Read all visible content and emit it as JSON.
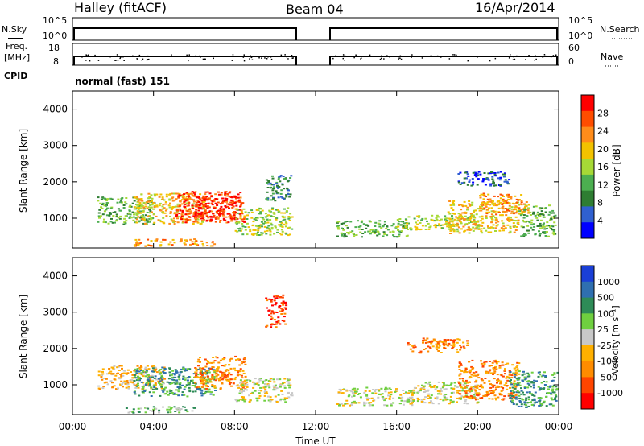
{
  "header": {
    "station": "Halley (fitACF)",
    "beam": "Beam 04",
    "date": "16/Apr/2014"
  },
  "top_panels": {
    "nsky": {
      "label": "N.Sky",
      "ticks": [
        "10^5",
        "10^0"
      ],
      "right_label": "N.Search",
      "right_ticks": [
        "10^5",
        "10^0"
      ]
    },
    "freq": {
      "label_line1": "Freq.",
      "label_line2": "[MHz]",
      "ticks": [
        "18",
        "8"
      ],
      "right_label": "Nave",
      "right_ticks": [
        "60",
        "0"
      ]
    },
    "cpid": {
      "label": "CPID",
      "value": "normal (fast) 151"
    }
  },
  "colors": {
    "power_scale": [
      "#0000ff",
      "#3060d0",
      "#2e7d32",
      "#4caf50",
      "#a6d936",
      "#f2c200",
      "#ff8c1a",
      "#ff4d00",
      "#ff0000"
    ],
    "velocity_scale": [
      "#ff0000",
      "#ff4500",
      "#ff8c00",
      "#ffb000",
      "#c8c8c8",
      "#6fcf3f",
      "#2e8b57",
      "#2f6fb0",
      "#1a3fd6"
    ]
  },
  "chart_data": [
    {
      "type": "heatmap",
      "panel": "power",
      "ylabel": "Slant Range [km]",
      "ylim": [
        180,
        4500
      ],
      "yticks": [
        "4000",
        "3000",
        "2000",
        "1000"
      ],
      "xlim": [
        "00:00",
        "24:00"
      ],
      "colorbar_label": "Power [dB]",
      "colorbar_ticks": [
        "28",
        "24",
        "20",
        "16",
        "12",
        "8",
        "4"
      ],
      "data_gap": [
        "11:00",
        "12:45"
      ],
      "regions": [
        {
          "t0": 1.2,
          "t1": 4.0,
          "r0": 850,
          "r1": 1600,
          "level": 3
        },
        {
          "t0": 3.0,
          "t1": 6.5,
          "r0": 850,
          "r1": 1700,
          "level": 5
        },
        {
          "t0": 5.0,
          "t1": 8.5,
          "r0": 900,
          "r1": 1750,
          "level": 7
        },
        {
          "t0": 6.0,
          "t1": 8.2,
          "r0": 1000,
          "r1": 1600,
          "level": 8
        },
        {
          "t0": 8.0,
          "t1": 10.8,
          "r0": 550,
          "r1": 1300,
          "level": 4
        },
        {
          "t0": 3.0,
          "t1": 7.0,
          "r0": 250,
          "r1": 450,
          "level": 6
        },
        {
          "t0": 9.5,
          "t1": 10.8,
          "r0": 1500,
          "r1": 2200,
          "level": 2
        },
        {
          "t0": 13.0,
          "t1": 16.5,
          "r0": 500,
          "r1": 950,
          "level": 3
        },
        {
          "t0": 16.0,
          "t1": 20.0,
          "r0": 700,
          "r1": 1100,
          "level": 4
        },
        {
          "t0": 18.5,
          "t1": 22.0,
          "r0": 600,
          "r1": 1500,
          "level": 5
        },
        {
          "t0": 20.0,
          "t1": 22.5,
          "r0": 1100,
          "r1": 1700,
          "level": 6
        },
        {
          "t0": 22.0,
          "t1": 23.8,
          "r0": 500,
          "r1": 1400,
          "level": 3
        },
        {
          "t0": 19.0,
          "t1": 21.5,
          "r0": 1900,
          "r1": 2300,
          "level": 1
        }
      ]
    },
    {
      "type": "heatmap",
      "panel": "velocity",
      "ylabel": "Slant Range [km]",
      "xlabel": "Time UT",
      "ylim": [
        180,
        4500
      ],
      "yticks": [
        "4000",
        "3000",
        "2000",
        "1000"
      ],
      "xticks": [
        "00:00",
        "04:00",
        "08:00",
        "12:00",
        "16:00",
        "20:00",
        "00:00"
      ],
      "xlim": [
        "00:00",
        "24:00"
      ],
      "colorbar_label": "Velocity [m s⁻¹]",
      "colorbar_ticks": [
        "1000",
        "500",
        "100",
        "25",
        "-25",
        "-100",
        "-500",
        "-1000"
      ],
      "data_gap": [
        "11:00",
        "12:45"
      ],
      "regions": [
        {
          "t0": 1.2,
          "t1": 4.5,
          "r0": 900,
          "r1": 1550,
          "level": 3
        },
        {
          "t0": 3.0,
          "t1": 7.0,
          "r0": 700,
          "r1": 1500,
          "level": 6
        },
        {
          "t0": 6.0,
          "t1": 8.5,
          "r0": 900,
          "r1": 1800,
          "level": 2
        },
        {
          "t0": 8.0,
          "t1": 10.8,
          "r0": 550,
          "r1": 1200,
          "level": 4
        },
        {
          "t0": 2.5,
          "t1": 6.0,
          "r0": 250,
          "r1": 420,
          "level": 5
        },
        {
          "t0": 9.5,
          "t1": 10.5,
          "r0": 2600,
          "r1": 3500,
          "level": 1
        },
        {
          "t0": 13.0,
          "t1": 17.0,
          "r0": 450,
          "r1": 950,
          "level": 4
        },
        {
          "t0": 17.0,
          "t1": 20.0,
          "r0": 500,
          "r1": 1100,
          "level": 4
        },
        {
          "t0": 19.0,
          "t1": 22.0,
          "r0": 600,
          "r1": 1700,
          "level": 2
        },
        {
          "t0": 21.5,
          "t1": 23.9,
          "r0": 400,
          "r1": 1400,
          "level": 6
        },
        {
          "t0": 16.5,
          "t1": 19.5,
          "r0": 1900,
          "r1": 2300,
          "level": 2
        }
      ]
    }
  ]
}
